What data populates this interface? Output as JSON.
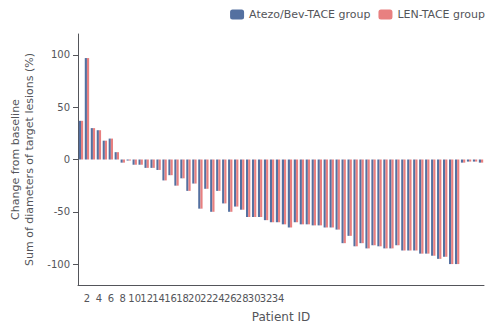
{
  "chart_data": {
    "type": "bar",
    "xlabel": "Patient ID",
    "ylabel": "Change from baseline\nSum of diameters of target lesions (%)",
    "categories": [
      null,
      "2",
      null,
      "4",
      null,
      "6",
      null,
      "8",
      null,
      "10",
      null,
      "12",
      null,
      "14",
      null,
      "16",
      null,
      "18",
      null,
      "20",
      null,
      "22",
      null,
      "24",
      null,
      "26",
      null,
      "28",
      null,
      "30",
      null,
      "32",
      null,
      "34",
      null,
      null,
      null,
      null,
      null,
      null,
      null,
      null,
      null,
      null,
      null,
      null,
      null,
      null,
      null,
      null,
      null,
      null,
      null,
      null,
      null,
      null,
      null,
      null,
      null,
      null,
      null,
      null,
      null,
      null,
      null,
      null,
      null,
      null
    ],
    "series": [
      {
        "name": "Atezo/Bev-TACE group",
        "color": "#5470A0",
        "values": [
          37,
          97,
          30,
          28,
          18,
          20,
          7,
          -3,
          -1,
          -5,
          -5,
          -8,
          -8,
          -10,
          -20,
          -15,
          -25,
          -18,
          -30,
          -23,
          -47,
          -28,
          -50,
          -30,
          -42,
          -50,
          -45,
          -48,
          -55,
          -55,
          -55,
          -58,
          -60,
          -60,
          -62,
          -65,
          -60,
          -62,
          -62,
          -63,
          -63,
          -65,
          -65,
          -67,
          -80,
          -73,
          -83,
          -80,
          -85,
          -82,
          -83,
          -85,
          -85,
          -82,
          -87,
          -87,
          -87,
          -90,
          -90,
          -92,
          -95,
          -93,
          -100,
          -100,
          -3,
          -2,
          -2,
          -3
        ]
      },
      {
        "name": "LEN-TACE group",
        "color": "#E88080",
        "values": [
          37,
          97,
          30,
          28,
          18,
          20,
          7,
          -3,
          -1,
          -5,
          -5,
          -8,
          -8,
          -10,
          -20,
          -15,
          -25,
          -18,
          -30,
          -23,
          -47,
          -28,
          -50,
          -30,
          -42,
          -50,
          -45,
          -48,
          -55,
          -55,
          -55,
          -58,
          -60,
          -60,
          -62,
          -65,
          -60,
          -62,
          -62,
          -63,
          -63,
          -65,
          -65,
          -67,
          -80,
          -73,
          -83,
          -80,
          -85,
          -82,
          -83,
          -85,
          -85,
          -82,
          -87,
          -87,
          -87,
          -90,
          -90,
          -92,
          -95,
          -93,
          -100,
          -100,
          -3,
          -2,
          -2,
          -3
        ]
      }
    ],
    "ylim": [
      -120,
      120
    ],
    "yticks": [
      -100,
      -50,
      0,
      50,
      100
    ],
    "grid": false,
    "legend": "upper right"
  }
}
